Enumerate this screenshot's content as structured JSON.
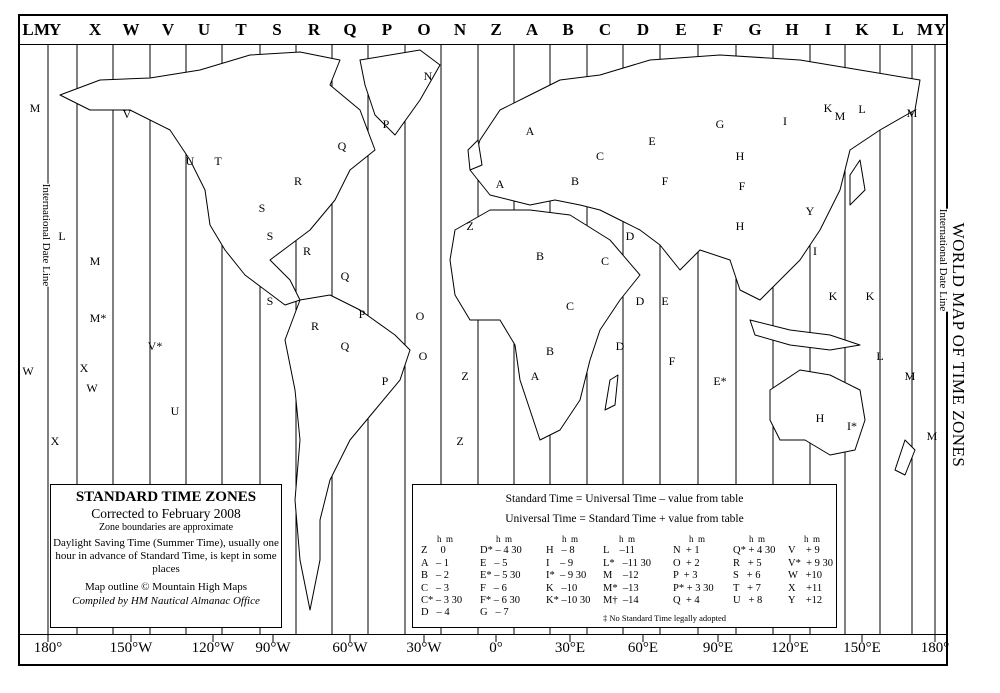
{
  "title": "WORLD MAP OF TIME ZONES",
  "date_line_label": "International Date Line",
  "zone_letters_top": [
    "L",
    "M",
    "Y",
    "X",
    "W",
    "V",
    "U",
    "T",
    "S",
    "R",
    "Q",
    "P",
    "O",
    "N",
    "Z",
    "A",
    "B",
    "C",
    "D",
    "E",
    "F",
    "G",
    "H",
    "I",
    "K",
    "L",
    "M",
    "Y"
  ],
  "longitudes": [
    "180°",
    "150°W",
    "120°W",
    "90°W",
    "60°W",
    "30°W",
    "0°",
    "30°E",
    "60°E",
    "90°E",
    "120°E",
    "150°E",
    "180°"
  ],
  "map_labels": [
    "M",
    "V",
    "U",
    "T",
    "S",
    "R",
    "Q",
    "P",
    "N",
    "Z",
    "A",
    "B",
    "C",
    "D",
    "E",
    "F",
    "G",
    "H",
    "I",
    "K",
    "L",
    "M",
    "S",
    "R",
    "Q",
    "P",
    "O",
    "Z",
    "A",
    "B",
    "C",
    "D",
    "E",
    "F",
    "H",
    "I",
    "K",
    "L",
    "M",
    "X",
    "W",
    "M*",
    "V*",
    "U",
    "S",
    "R",
    "Q",
    "P",
    "O",
    "Z",
    "A",
    "B",
    "C",
    "D",
    "E*",
    "F",
    "H",
    "I*",
    "K",
    "M",
    "W",
    "L",
    "X",
    "M",
    "Y",
    "M",
    "K"
  ],
  "legend_left": {
    "heading": "STANDARD TIME ZONES",
    "corrected": "Corrected to February 2008",
    "approx": "Zone boundaries are approximate",
    "dst": "Daylight Saving Time (Summer Time), usually one hour in advance of Standard Time, is kept in some places",
    "outline": "Map outline © Mountain High Maps",
    "compiled": "Compiled by HM Nautical Almanac Office"
  },
  "legend_right": {
    "eq1": "Standard Time   =  Universal Time  –  value from table",
    "eq2": "Universal Time  =  Standard  Time  +  value from table",
    "hm": "h  m",
    "columns": [
      [
        "Z     0",
        "A   – 1",
        "B   – 2",
        "C   – 3",
        "C* – 3 30",
        "D   – 4"
      ],
      [
        "D* – 4 30",
        "E   – 5",
        "E* – 5 30",
        "F   – 6",
        "F* – 6 30",
        "G   – 7"
      ],
      [
        "H   – 8",
        "I    – 9",
        "I*  – 9 30",
        "K   –10",
        "K* –10 30"
      ],
      [
        "L    –11",
        "L*   –11 30",
        "M    –12",
        "M*  –13",
        "M†  –14"
      ],
      [
        "N  + 1",
        "O  + 2",
        "P  + 3",
        "P* + 3 30",
        "Q  + 4"
      ],
      [
        "Q* + 4 30",
        "R   + 5",
        "S   + 6",
        "T   + 7",
        "U   + 8"
      ],
      [
        "V    + 9",
        "V*  + 9 30",
        "W   +10",
        "X    +11",
        "Y    +12"
      ]
    ],
    "note": "‡ No Standard Time legally adopted"
  }
}
